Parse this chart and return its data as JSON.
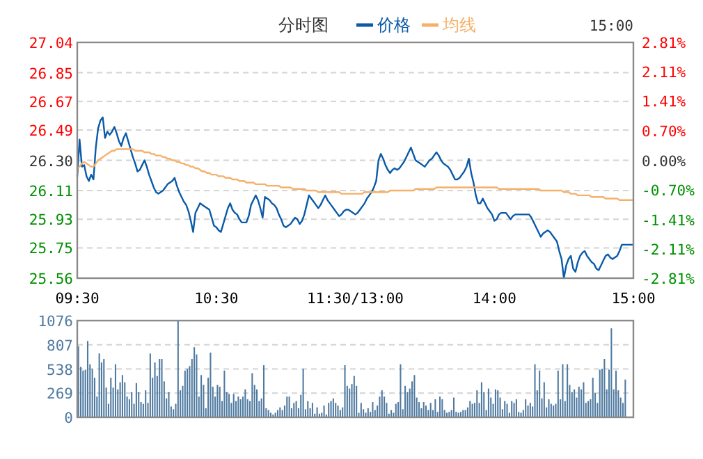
{
  "chart_data": [
    {
      "type": "line",
      "title": "分时图",
      "annotations": [
        "15:00"
      ],
      "legend": "top",
      "grid": "y",
      "categories": [
        "09:30",
        null,
        null,
        null,
        null,
        null,
        null,
        null,
        null,
        null,
        null,
        null,
        null,
        null,
        null,
        null,
        null,
        null,
        null,
        null,
        null,
        null,
        null,
        null,
        null,
        null,
        null,
        null,
        null,
        null,
        null,
        null,
        null,
        null,
        null,
        null,
        null,
        null,
        null,
        null,
        null,
        null,
        null,
        null,
        null,
        null,
        null,
        null,
        null,
        null,
        null,
        null,
        null,
        null,
        null,
        null,
        null,
        null,
        null,
        null,
        "10:30",
        null,
        null,
        null,
        null,
        null,
        null,
        null,
        null,
        null,
        null,
        null,
        null,
        null,
        null,
        null,
        null,
        null,
        null,
        null,
        null,
        null,
        null,
        null,
        null,
        null,
        null,
        null,
        null,
        null,
        null,
        null,
        null,
        null,
        null,
        null,
        null,
        null,
        null,
        null,
        null,
        null,
        null,
        null,
        null,
        null,
        null,
        null,
        null,
        null,
        null,
        null,
        null,
        null,
        null,
        null,
        null,
        null,
        null,
        null,
        "11:30/13:00",
        null,
        null,
        null,
        null,
        null,
        null,
        null,
        null,
        null,
        null,
        null,
        null,
        null,
        null,
        null,
        null,
        null,
        null,
        null,
        null,
        null,
        null,
        null,
        null,
        null,
        null,
        null,
        null,
        null,
        null,
        null,
        null,
        null,
        null,
        null,
        null,
        null,
        null,
        null,
        null,
        null,
        null,
        null,
        null,
        null,
        null,
        null,
        null,
        null,
        null,
        null,
        null,
        null,
        null,
        null,
        null,
        null,
        null,
        null,
        "14:00",
        null,
        null,
        null,
        null,
        null,
        null,
        null,
        null,
        null,
        null,
        null,
        null,
        null,
        null,
        null,
        null,
        null,
        null,
        null,
        null,
        null,
        null,
        null,
        null,
        null,
        null,
        null,
        null,
        null,
        null,
        null,
        null,
        null,
        null,
        null,
        null,
        null,
        null,
        null,
        null,
        null,
        null,
        null,
        null,
        null,
        null,
        null,
        null,
        null,
        null,
        null,
        null,
        null,
        null,
        null,
        null,
        null,
        null,
        null,
        "15:00"
      ],
      "ylim": [
        25.56,
        27.04
      ],
      "yticks": [
        25.56,
        25.75,
        25.93,
        26.11,
        {
          "value": 26.3,
          "label": "26.30"
        },
        26.49,
        26.67,
        26.85,
        27.04
      ],
      "y2lim": [
        -2.81,
        2.81
      ],
      "y2ticks": [
        {
          "value": -2.81,
          "label": "-2.81%"
        },
        {
          "value": -2.11,
          "label": "-2.11%"
        },
        {
          "value": -1.41,
          "label": "-1.41%"
        },
        {
          "value": -0.7,
          "label": "-0.70%"
        },
        {
          "value": 0,
          "label": "0.00%"
        },
        {
          "value": 0.7,
          "label": "0.70%"
        },
        {
          "value": 1.41,
          "label": "1.41%"
        },
        {
          "value": 2.11,
          "label": "2.11%"
        },
        {
          "value": 2.81,
          "label": "2.81%"
        }
      ],
      "series": [
        {
          "name": "价格",
          "color": "#0a5aa8",
          "values": [
            26.2,
            26.43,
            26.26,
            26.27,
            26.2,
            26.17,
            26.21,
            26.18,
            26.38,
            26.5,
            26.55,
            26.57,
            26.44,
            26.48,
            26.46,
            26.48,
            26.51,
            26.47,
            26.42,
            26.39,
            26.44,
            26.47,
            26.42,
            26.37,
            26.32,
            26.28,
            26.23,
            26.24,
            26.27,
            26.3,
            26.26,
            26.21,
            26.17,
            26.13,
            26.1,
            26.09,
            26.1,
            26.11,
            26.13,
            26.15,
            26.16,
            26.17,
            26.19,
            26.14,
            26.1,
            26.07,
            26.04,
            26.02,
            25.98,
            25.92,
            25.85,
            25.97,
            26.0,
            26.03,
            26.02,
            26.01,
            26.0,
            25.99,
            25.94,
            25.89,
            25.88,
            25.86,
            25.85,
            25.9,
            25.95,
            26.0,
            26.03,
            25.99,
            25.97,
            25.96,
            25.93,
            25.91,
            25.91,
            25.91,
            25.95,
            26.02,
            26.05,
            26.08,
            26.05,
            26.0,
            25.94,
            26.07,
            26.06,
            26.05,
            26.03,
            26.02,
            26.0,
            25.96,
            25.93,
            25.89,
            25.88,
            25.89,
            25.9,
            25.92,
            25.94,
            25.93,
            25.9,
            25.92,
            25.96,
            26.02,
            26.08,
            26.06,
            26.04,
            26.02,
            26.0,
            26.02,
            26.05,
            26.08,
            26.05,
            26.03,
            26.01,
            25.99,
            25.97,
            25.95,
            25.96,
            25.98,
            25.99,
            25.99,
            25.98,
            25.97,
            25.96,
            25.97,
            25.99,
            26.01,
            26.03,
            26.06,
            26.08,
            26.1,
            26.13,
            26.17,
            26.3,
            26.34,
            26.31,
            26.27,
            26.24,
            26.22,
            26.24,
            26.25,
            26.24,
            26.25,
            26.27,
            26.29,
            26.32,
            26.35,
            26.38,
            26.34,
            26.3,
            26.29,
            26.28,
            26.27,
            26.26,
            26.28,
            26.3,
            26.31,
            26.33,
            26.35,
            26.33,
            26.3,
            26.28,
            26.27,
            26.26,
            26.24,
            26.21,
            26.18,
            26.18,
            26.19,
            26.21,
            26.23,
            26.26,
            26.31,
            26.22,
            26.16,
            26.08,
            26.03,
            26.03,
            26.06,
            26.03,
            26.0,
            25.98,
            25.96,
            25.92,
            25.93,
            25.96,
            25.97,
            25.97,
            25.97,
            25.95,
            25.93,
            25.95,
            25.96,
            25.96,
            25.96,
            25.96,
            25.96,
            25.96,
            25.96,
            25.94,
            25.91,
            25.88,
            25.85,
            25.82,
            25.84,
            25.85,
            25.86,
            25.85,
            25.83,
            25.81,
            25.79,
            25.73,
            25.68,
            25.56,
            25.64,
            25.68,
            25.7,
            25.62,
            25.6,
            25.66,
            25.7,
            25.72,
            25.73,
            25.7,
            25.68,
            25.66,
            25.65,
            25.62,
            25.61,
            25.64,
            25.67,
            25.7,
            25.71,
            25.69,
            25.68,
            25.69,
            25.7,
            25.73,
            25.77,
            25.77,
            25.77,
            25.77,
            25.77,
            25.77
          ]
        },
        {
          "name": "均线",
          "color": "#f5b06a",
          "values": [
            26.25,
            26.26,
            26.28,
            26.29,
            26.28,
            26.27,
            26.26,
            26.26,
            26.28,
            26.3,
            26.31,
            26.32,
            26.33,
            26.34,
            26.35,
            26.36,
            26.36,
            26.37,
            26.37,
            26.37,
            26.37,
            26.37,
            26.37,
            26.37,
            26.37,
            26.36,
            26.36,
            26.36,
            26.36,
            26.35,
            26.35,
            26.35,
            26.34,
            26.34,
            26.33,
            26.33,
            26.33,
            26.32,
            26.32,
            26.31,
            26.31,
            26.3,
            26.3,
            26.29,
            26.29,
            26.28,
            26.28,
            26.27,
            26.27,
            26.26,
            26.26,
            26.25,
            26.25,
            26.24,
            26.23,
            26.23,
            26.22,
            26.22,
            26.21,
            26.21,
            26.21,
            26.2,
            26.2,
            26.2,
            26.19,
            26.19,
            26.19,
            26.18,
            26.18,
            26.18,
            26.17,
            26.17,
            26.17,
            26.16,
            26.16,
            26.16,
            26.16,
            26.15,
            26.15,
            26.15,
            26.15,
            26.15,
            26.14,
            26.14,
            26.14,
            26.14,
            26.14,
            26.14,
            26.13,
            26.13,
            26.13,
            26.13,
            26.13,
            26.12,
            26.12,
            26.12,
            26.12,
            26.12,
            26.12,
            26.11,
            26.11,
            26.11,
            26.11,
            26.11,
            26.1,
            26.1,
            26.1,
            26.1,
            26.1,
            26.1,
            26.1,
            26.1,
            26.1,
            26.1,
            26.09,
            26.09,
            26.09,
            26.09,
            26.09,
            26.09,
            26.09,
            26.09,
            26.09,
            26.09,
            26.1,
            26.1,
            26.1,
            26.1,
            26.1,
            26.1,
            26.1,
            26.1,
            26.1,
            26.1,
            26.1,
            26.11,
            26.11,
            26.11,
            26.11,
            26.11,
            26.11,
            26.11,
            26.11,
            26.11,
            26.11,
            26.11,
            26.12,
            26.12,
            26.12,
            26.12,
            26.12,
            26.12,
            26.12,
            26.12,
            26.12,
            26.13,
            26.13,
            26.13,
            26.13,
            26.13,
            26.13,
            26.13,
            26.13,
            26.13,
            26.13,
            26.13,
            26.13,
            26.13,
            26.13,
            26.13,
            26.13,
            26.13,
            26.13,
            26.13,
            26.13,
            26.13,
            26.13,
            26.13,
            26.13,
            26.13,
            26.13,
            26.13,
            26.12,
            26.12,
            26.12,
            26.12,
            26.12,
            26.12,
            26.12,
            26.12,
            26.12,
            26.12,
            26.12,
            26.12,
            26.12,
            26.12,
            26.12,
            26.12,
            26.12,
            26.12,
            26.11,
            26.11,
            26.11,
            26.11,
            26.11,
            26.11,
            26.11,
            26.11,
            26.11,
            26.11,
            26.1,
            26.1,
            26.1,
            26.09,
            26.09,
            26.09,
            26.08,
            26.08,
            26.08,
            26.08,
            26.08,
            26.08,
            26.07,
            26.07,
            26.07,
            26.07,
            26.07,
            26.07,
            26.06,
            26.06,
            26.06,
            26.06,
            26.06,
            26.06,
            26.05,
            26.05,
            26.05,
            26.05,
            26.05,
            26.05,
            26.05
          ]
        }
      ]
    },
    {
      "type": "bar",
      "grid": "y",
      "tick_labels": "y",
      "ylim": [
        0,
        1076
      ],
      "yticks": [
        0,
        269,
        538,
        807,
        1076
      ],
      "categories": [
        null,
        null,
        null,
        null,
        null,
        null,
        null,
        null,
        null,
        null,
        null,
        null,
        null,
        null,
        null,
        null,
        null,
        null,
        null,
        null,
        null,
        null,
        null,
        null,
        null,
        null,
        null,
        null,
        null,
        null,
        null,
        null,
        null,
        null,
        null,
        null,
        null,
        null,
        null,
        null,
        null,
        null,
        null,
        null,
        null,
        null,
        null,
        null,
        null,
        null,
        null,
        null,
        null,
        null,
        null,
        null,
        null,
        null,
        null,
        null,
        null,
        null,
        null,
        null,
        null,
        null,
        null,
        null,
        null,
        null,
        null,
        null,
        null,
        null,
        null,
        null,
        null,
        null,
        null,
        null,
        null,
        null,
        null,
        null,
        null,
        null,
        null,
        null,
        null,
        null,
        null,
        null,
        null,
        null,
        null,
        null,
        null,
        null,
        null,
        null,
        null,
        null,
        null,
        null,
        null,
        null,
        null,
        null,
        null,
        null,
        null,
        null,
        null,
        null,
        null,
        null,
        null,
        null,
        null,
        null,
        null,
        null,
        null,
        null,
        null,
        null,
        null,
        null,
        null,
        null,
        null,
        null,
        null,
        null,
        null,
        null,
        null,
        null,
        null,
        null,
        null,
        null,
        null,
        null,
        null,
        null,
        null,
        null,
        null,
        null,
        null,
        null,
        null,
        null,
        null,
        null,
        null,
        null,
        null,
        null,
        null,
        null,
        null,
        null,
        null,
        null,
        null,
        null,
        null,
        null,
        null,
        null,
        null,
        null,
        null,
        null,
        null,
        null,
        null,
        null,
        null,
        null,
        null,
        null,
        null,
        null,
        null,
        null,
        null,
        null,
        null,
        null,
        null,
        null,
        null,
        null,
        null,
        null,
        null,
        null,
        null,
        null,
        null,
        null,
        null,
        null,
        null,
        null,
        null,
        null,
        null,
        null,
        null,
        null,
        null,
        null,
        null,
        null,
        null,
        null,
        null,
        null,
        null,
        null,
        null,
        null,
        null,
        null,
        null,
        null,
        null,
        null,
        null,
        null,
        null,
        null,
        null,
        null,
        null,
        null
      ],
      "series": [
        {
          "color": "#4f7aa0",
          "values": [
            790,
            560,
            520,
            530,
            850,
            590,
            540,
            440,
            230,
            710,
            610,
            650,
            330,
            150,
            440,
            330,
            590,
            310,
            390,
            470,
            390,
            230,
            200,
            280,
            150,
            380,
            280,
            170,
            150,
            300,
            160,
            710,
            440,
            610,
            460,
            650,
            650,
            400,
            210,
            280,
            120,
            90,
            150,
            1076,
            300,
            350,
            520,
            540,
            570,
            650,
            780,
            700,
            230,
            470,
            360,
            100,
            440,
            720,
            340,
            230,
            360,
            340,
            180,
            520,
            280,
            260,
            160,
            260,
            180,
            230,
            200,
            230,
            310,
            200,
            180,
            490,
            360,
            310,
            180,
            210,
            580,
            100,
            80,
            50,
            30,
            50,
            80,
            110,
            80,
            130,
            230,
            230,
            100,
            160,
            180,
            100,
            250,
            540,
            90,
            180,
            100,
            160,
            40,
            110,
            40,
            50,
            130,
            30,
            160,
            180,
            210,
            160,
            130,
            80,
            110,
            580,
            350,
            320,
            370,
            460,
            350,
            50,
            160,
            90,
            50,
            100,
            60,
            170,
            80,
            130,
            230,
            300,
            230,
            160,
            40,
            80,
            50,
            150,
            170,
            590,
            90,
            350,
            280,
            320,
            400,
            470,
            220,
            170,
            100,
            170,
            130,
            80,
            160,
            80,
            200,
            60,
            230,
            200,
            80,
            50,
            60,
            80,
            220,
            60,
            50,
            60,
            80,
            80,
            110,
            180,
            150,
            160,
            300,
            160,
            390,
            280,
            80,
            320,
            220,
            150,
            310,
            300,
            220,
            90,
            180,
            150,
            50,
            180,
            160,
            200,
            60,
            50,
            80,
            200,
            130,
            160,
            120,
            590,
            300,
            520,
            210,
            390,
            110,
            200,
            150,
            130,
            150,
            520,
            200,
            590,
            180,
            590,
            360,
            280,
            310,
            220,
            340,
            310,
            390,
            160,
            180,
            200,
            440,
            270,
            160,
            530,
            540,
            650,
            310,
            530,
            990,
            310,
            520,
            300,
            220,
            160,
            420,
            0,
            0,
            0
          ]
        }
      ]
    }
  ]
}
